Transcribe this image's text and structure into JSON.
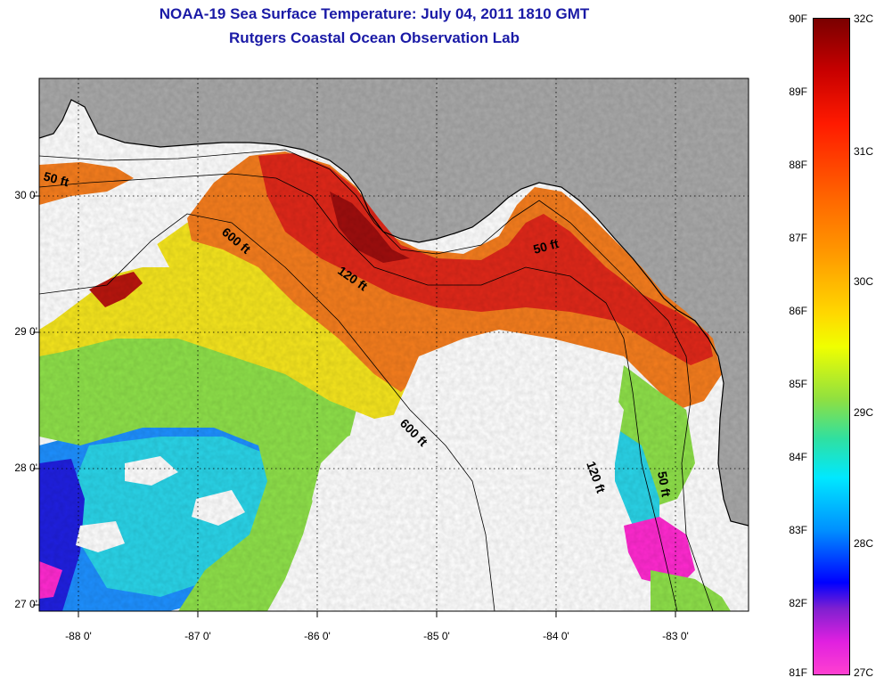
{
  "title": {
    "line1": "NOAA-19 Sea Surface Temperature:  July 04, 2011 1810 GMT",
    "line2": "Rutgers Coastal Ocean Observation Lab"
  },
  "axes": {
    "latitudes": [
      "30 0'",
      "29 0'",
      "28 0'",
      "27 0'"
    ],
    "longitudes": [
      "-88 0'",
      "-87 0'",
      "-86 0'",
      "-85 0'",
      "-84 0'",
      "-83 0'"
    ]
  },
  "contours": {
    "label_50": "50 ft",
    "label_50b": "50 ft",
    "label_50c": "50 ft",
    "label_120": "120 ft",
    "label_120b": "120 ft",
    "label_600": "600 ft",
    "label_600b": "600 ft"
  },
  "colorbar": {
    "fahrenheit": [
      "90F",
      "89F",
      "88F",
      "87F",
      "86F",
      "85F",
      "84F",
      "83F",
      "82F",
      "81F"
    ],
    "celsius": [
      "32C",
      "31C",
      "30C",
      "29C",
      "28C",
      "27C"
    ]
  },
  "colors": {
    "land": "#a9a9a9",
    "title": "#1a1aa6",
    "cloud": "#ffffff"
  }
}
